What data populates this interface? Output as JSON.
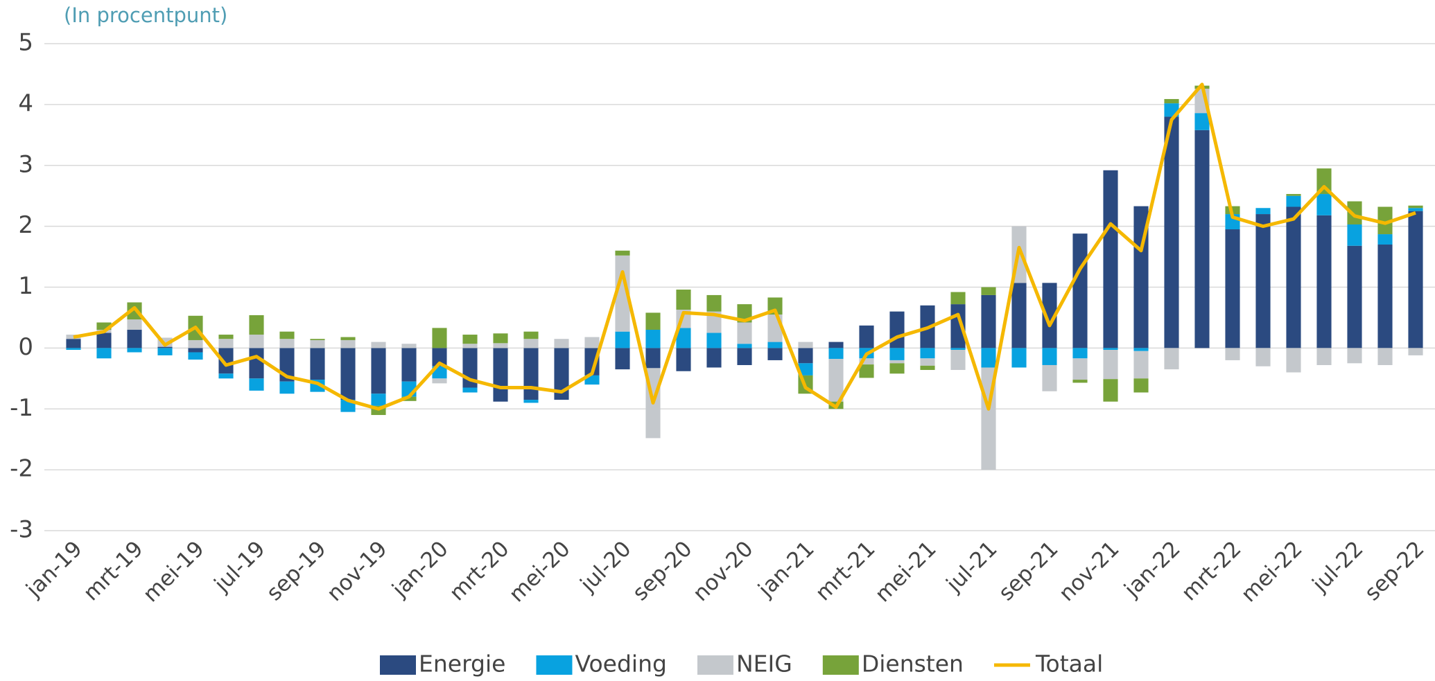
{
  "chart_data": {
    "type": "bar",
    "stacked": true,
    "subtitle": "(In procentpunt)",
    "categories": [
      "jan-19",
      null,
      "mrt-19",
      null,
      "mei-19",
      null,
      "jul-19",
      null,
      "sep-19",
      null,
      "nov-19",
      null,
      "jan-20",
      null,
      "mrt-20",
      null,
      "mei-20",
      null,
      "jul-20",
      null,
      "sep-20",
      null,
      "nov-20",
      null,
      "jan-21",
      null,
      "mrt-21",
      null,
      "mei-21",
      null,
      "jul-21",
      null,
      "sep-21",
      null,
      "nov-21",
      null,
      "jan-22",
      null,
      "mrt-22",
      null,
      "mei-22",
      null,
      "jul-22",
      null,
      "sep-22"
    ],
    "series": [
      {
        "name": "Energie",
        "color": "#2b4a80",
        "values": [
          0.15,
          0.25,
          0.3,
          0.02,
          -0.07,
          -0.42,
          -0.5,
          -0.55,
          -0.52,
          -0.85,
          -0.75,
          -0.55,
          -0.3,
          -0.65,
          -0.88,
          -0.85,
          -0.85,
          -0.45,
          -0.35,
          -0.33,
          -0.38,
          -0.32,
          -0.28,
          -0.2,
          -0.25,
          0.1,
          0.37,
          0.6,
          0.7,
          0.72,
          0.87,
          1.07,
          1.07,
          1.88,
          2.92,
          2.33,
          3.8,
          3.58,
          1.95,
          2.2,
          2.32,
          2.18,
          1.68,
          1.7,
          2.25
        ]
      },
      {
        "name": "Voeding",
        "color": "#08a2e0",
        "values": [
          -0.03,
          -0.17,
          -0.07,
          -0.12,
          -0.12,
          -0.08,
          -0.2,
          -0.2,
          -0.2,
          -0.2,
          -0.2,
          -0.25,
          -0.2,
          -0.08,
          0,
          -0.05,
          0,
          -0.15,
          0.27,
          0.3,
          0.33,
          0.25,
          0.07,
          0.1,
          -0.2,
          -0.18,
          -0.17,
          -0.2,
          -0.17,
          -0.03,
          -0.32,
          -0.32,
          -0.28,
          -0.17,
          -0.03,
          -0.05,
          0.22,
          0.28,
          0.25,
          0.1,
          0.18,
          0.35,
          0.35,
          0.17,
          0.05
        ]
      },
      {
        "name": "NEIG",
        "color": "#c4c8cc",
        "values": [
          0.07,
          0.05,
          0.17,
          0.15,
          0.13,
          0.15,
          0.22,
          0.15,
          0.13,
          0.13,
          0.1,
          0.07,
          -0.08,
          0.07,
          0.08,
          0.15,
          0.15,
          0.18,
          1.25,
          -1.15,
          0.3,
          0.35,
          0.35,
          0.45,
          0.1,
          -0.7,
          -0.1,
          -0.05,
          -0.12,
          -0.33,
          -1.68,
          0.93,
          -0.43,
          -0.35,
          -0.48,
          -0.45,
          -0.35,
          0.4,
          -0.2,
          -0.3,
          -0.4,
          -0.28,
          -0.25,
          -0.28,
          -0.12
        ]
      },
      {
        "name": "Diensten",
        "color": "#77a33a",
        "values": [
          0,
          0.12,
          0.28,
          0,
          0.4,
          0.07,
          0.32,
          0.12,
          0.02,
          0.05,
          -0.15,
          -0.07,
          0.33,
          0.15,
          0.16,
          0.12,
          0,
          0,
          0.08,
          0.28,
          0.33,
          0.27,
          0.3,
          0.28,
          -0.3,
          -0.12,
          -0.22,
          -0.17,
          -0.07,
          0.2,
          0.13,
          0,
          0,
          -0.05,
          -0.37,
          -0.23,
          0.07,
          0.05,
          0.13,
          0,
          0.03,
          0.42,
          0.38,
          0.45,
          0.04
        ]
      },
      {
        "name": "Totaal",
        "type": "line",
        "color": "#f5b800",
        "values": [
          0.18,
          0.27,
          0.66,
          0.05,
          0.34,
          -0.28,
          -0.14,
          -0.47,
          -0.58,
          -0.86,
          -1.0,
          -0.8,
          -0.25,
          -0.52,
          -0.65,
          -0.65,
          -0.72,
          -0.42,
          1.25,
          -0.9,
          0.58,
          0.55,
          0.45,
          0.62,
          -0.65,
          -0.97,
          -0.1,
          0.18,
          0.33,
          0.55,
          -1.0,
          1.65,
          0.37,
          1.3,
          2.04,
          1.6,
          3.75,
          4.33,
          2.15,
          2.0,
          2.12,
          2.65,
          2.17,
          2.05,
          2.22
        ]
      }
    ],
    "ylim": [
      -3,
      5
    ],
    "yticks": [
      -3,
      -2,
      -1,
      0,
      1,
      2,
      3,
      4,
      5
    ],
    "grid": true,
    "legend": "bottom"
  }
}
